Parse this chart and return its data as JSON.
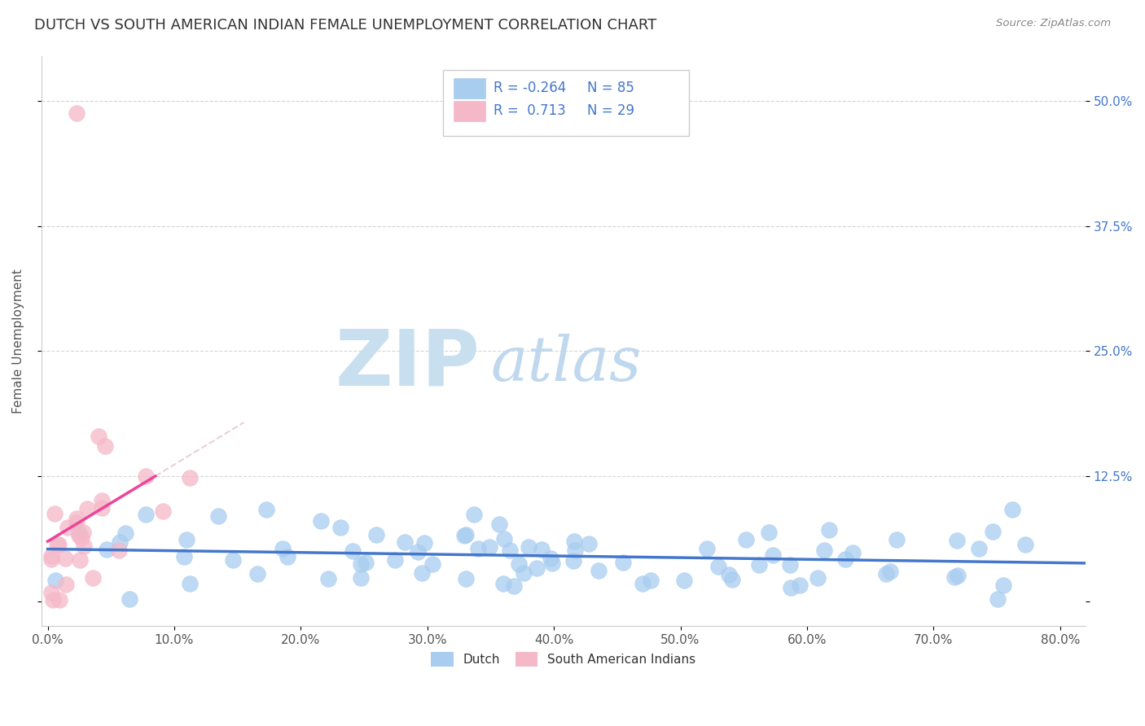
{
  "title": "DUTCH VS SOUTH AMERICAN INDIAN FEMALE UNEMPLOYMENT CORRELATION CHART",
  "source": "Source: ZipAtlas.com",
  "ylabel": "Female Unemployment",
  "dutch_color": "#A8CDEF",
  "dutch_edge_color": "#A8CDEF",
  "south_american_color": "#F5B8C8",
  "south_american_edge_color": "#F5B8C8",
  "dutch_R": -0.264,
  "dutch_N": 85,
  "south_american_R": 0.713,
  "south_american_N": 29,
  "trend_line_dutch_color": "#4477CC",
  "trend_line_sa_color": "#EE4499",
  "trend_line_dutch_dashed_color": "#CCCCCC",
  "trend_line_sa_dashed_color": "#DDBBCC",
  "watermark_zip_color": "#C8DFF0",
  "watermark_atlas_color": "#C0D8EE",
  "background_color": "#FFFFFF",
  "grid_color": "#CCCCCC",
  "title_color": "#333333",
  "tick_color": "#555555",
  "right_tick_color": "#4477CC",
  "legend_text_color": "#4477CC",
  "legend_border_color": "#CCCCCC",
  "legend_box_dutch_color": "#A8CDEF",
  "legend_box_sa_color": "#F5B8C8",
  "bottom_legend_text_color": "#333333"
}
